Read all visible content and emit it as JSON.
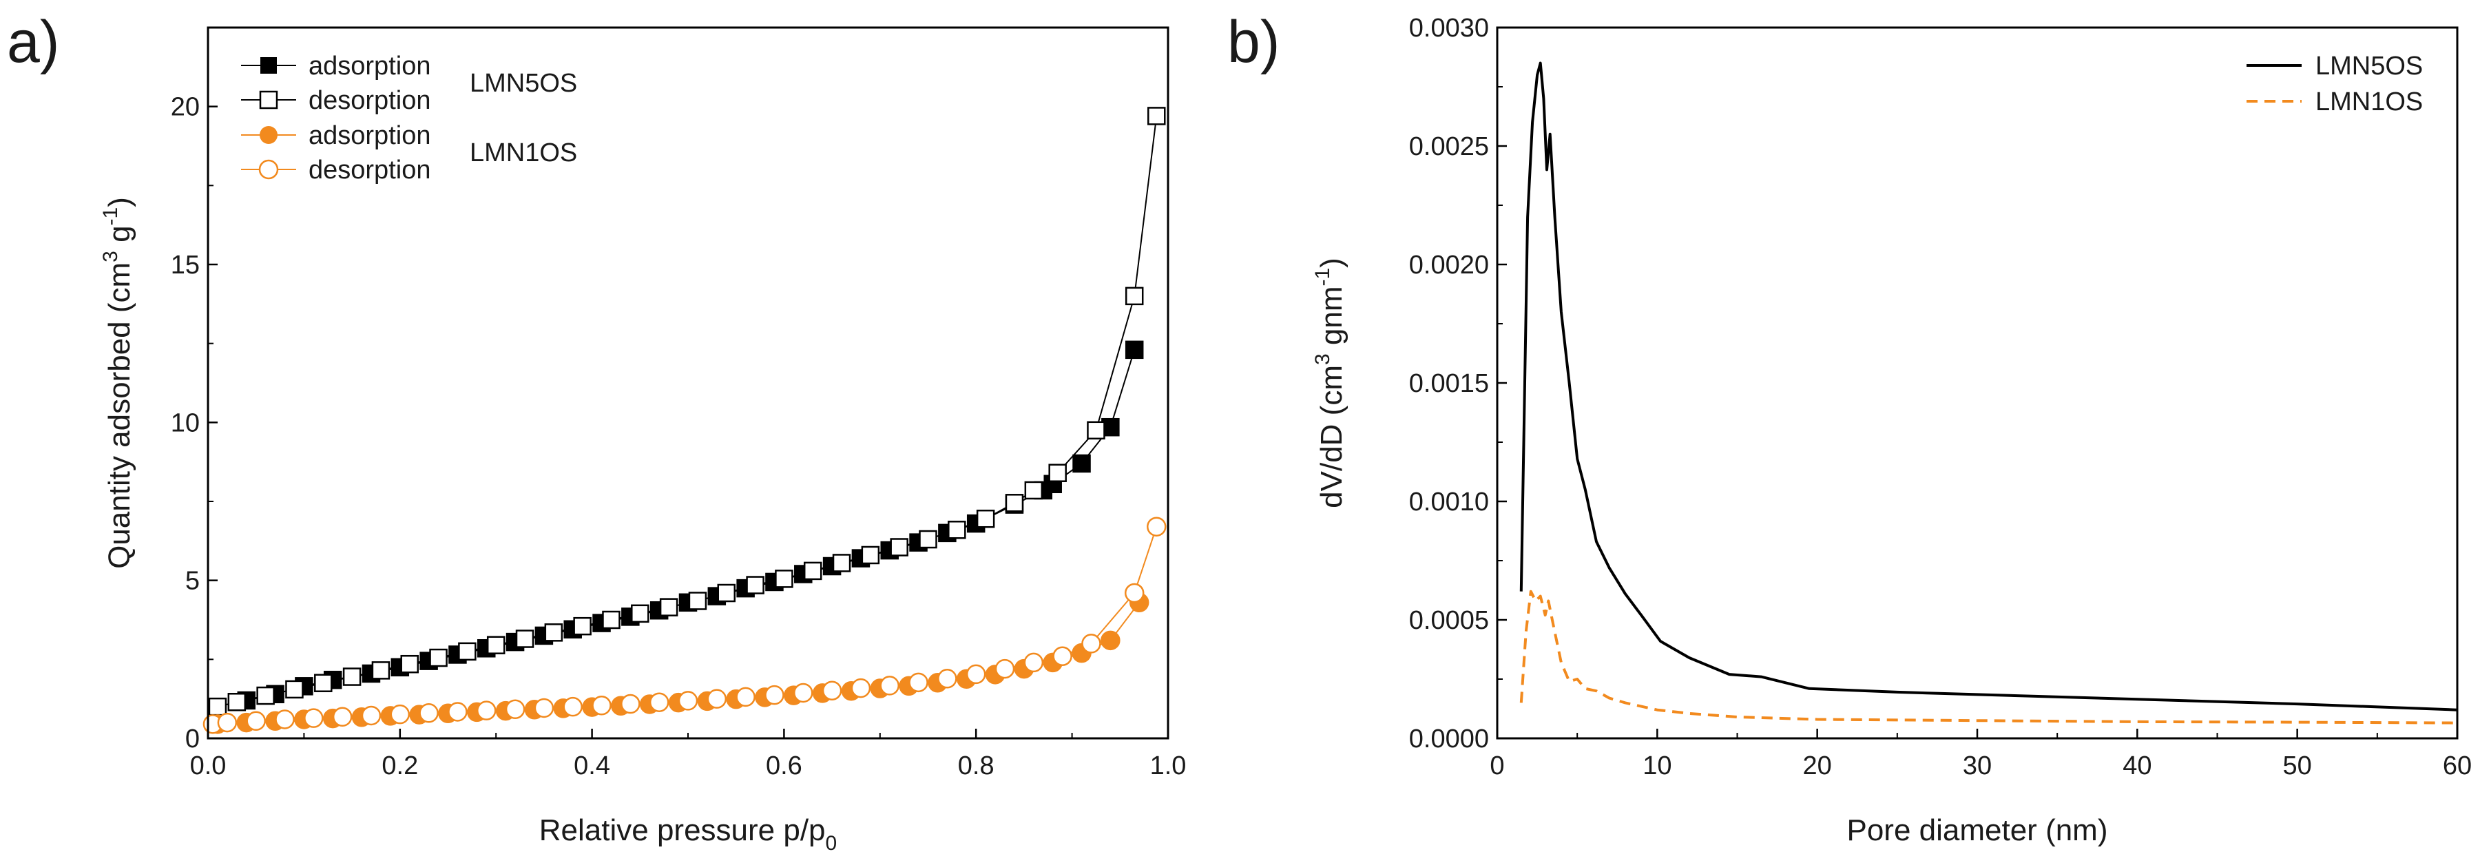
{
  "chart_data": [
    {
      "panel_label": "a)",
      "type": "scatter",
      "xlabel": "Relative pressure p/p",
      "xlabel_sub": "0",
      "ylabel": "Quantity adsorbed (cm",
      "ylabel_sup1": "3",
      "ylabel_mid": " g",
      "ylabel_sup2": "-1",
      "ylabel_end": ")",
      "xlim": [
        0.0,
        1.0
      ],
      "ylim": [
        0,
        22.5
      ],
      "xticks": [
        "0.0",
        "0.2",
        "0.4",
        "0.6",
        "0.8",
        "1.0"
      ],
      "yticks": [
        "0",
        "5",
        "10",
        "15",
        "20"
      ],
      "sample_labels": [
        "LMN5OS",
        "LMN1OS"
      ],
      "series": [
        {
          "name": "adsorption",
          "sample": "LMN5OS",
          "color": "#000000",
          "marker": "square",
          "filled": true,
          "x": [
            0.04,
            0.07,
            0.1,
            0.13,
            0.17,
            0.2,
            0.23,
            0.26,
            0.29,
            0.32,
            0.35,
            0.38,
            0.41,
            0.44,
            0.47,
            0.5,
            0.53,
            0.56,
            0.59,
            0.62,
            0.65,
            0.68,
            0.71,
            0.74,
            0.77,
            0.8,
            0.84,
            0.87,
            0.88,
            0.91,
            0.94,
            0.965
          ],
          "y": [
            1.2,
            1.4,
            1.65,
            1.85,
            2.05,
            2.25,
            2.45,
            2.65,
            2.85,
            3.05,
            3.25,
            3.45,
            3.65,
            3.85,
            4.05,
            4.3,
            4.5,
            4.75,
            4.95,
            5.2,
            5.45,
            5.7,
            5.95,
            6.2,
            6.5,
            6.8,
            7.4,
            7.85,
            8.05,
            8.7,
            9.85,
            12.3
          ]
        },
        {
          "name": "desorption",
          "sample": "LMN5OS",
          "color": "#000000",
          "marker": "square",
          "filled": false,
          "x": [
            0.01,
            0.03,
            0.06,
            0.09,
            0.12,
            0.15,
            0.18,
            0.21,
            0.24,
            0.27,
            0.3,
            0.33,
            0.36,
            0.39,
            0.42,
            0.45,
            0.48,
            0.51,
            0.54,
            0.57,
            0.6,
            0.63,
            0.66,
            0.69,
            0.72,
            0.75,
            0.78,
            0.81,
            0.84,
            0.86,
            0.885,
            0.925,
            0.965,
            0.988
          ],
          "y": [
            1.0,
            1.15,
            1.35,
            1.55,
            1.75,
            1.95,
            2.15,
            2.35,
            2.55,
            2.75,
            2.95,
            3.15,
            3.35,
            3.55,
            3.75,
            3.95,
            4.15,
            4.35,
            4.6,
            4.85,
            5.05,
            5.3,
            5.55,
            5.8,
            6.05,
            6.3,
            6.6,
            6.95,
            7.45,
            7.85,
            8.4,
            9.75,
            14.0,
            19.7
          ]
        },
        {
          "name": "adsorption",
          "sample": "LMN1OS",
          "color": "#f28a1e",
          "marker": "circle",
          "filled": true,
          "x": [
            0.01,
            0.04,
            0.07,
            0.1,
            0.13,
            0.16,
            0.19,
            0.22,
            0.25,
            0.28,
            0.31,
            0.34,
            0.37,
            0.4,
            0.43,
            0.46,
            0.49,
            0.52,
            0.55,
            0.58,
            0.61,
            0.64,
            0.67,
            0.7,
            0.73,
            0.76,
            0.79,
            0.82,
            0.85,
            0.88,
            0.91,
            0.94,
            0.97
          ],
          "y": [
            0.45,
            0.5,
            0.55,
            0.6,
            0.63,
            0.67,
            0.71,
            0.75,
            0.79,
            0.83,
            0.87,
            0.91,
            0.95,
            0.99,
            1.03,
            1.08,
            1.13,
            1.18,
            1.24,
            1.3,
            1.36,
            1.43,
            1.5,
            1.58,
            1.66,
            1.76,
            1.88,
            2.02,
            2.2,
            2.4,
            2.7,
            3.1,
            4.3
          ]
        },
        {
          "name": "desorption",
          "sample": "LMN1OS",
          "color": "#f28a1e",
          "marker": "circle",
          "filled": false,
          "x": [
            0.005,
            0.02,
            0.05,
            0.08,
            0.11,
            0.14,
            0.17,
            0.2,
            0.23,
            0.26,
            0.29,
            0.32,
            0.35,
            0.38,
            0.41,
            0.44,
            0.47,
            0.5,
            0.53,
            0.56,
            0.59,
            0.62,
            0.65,
            0.68,
            0.71,
            0.74,
            0.77,
            0.8,
            0.83,
            0.86,
            0.89,
            0.92,
            0.965,
            0.988
          ],
          "y": [
            0.45,
            0.5,
            0.55,
            0.6,
            0.64,
            0.68,
            0.72,
            0.76,
            0.8,
            0.84,
            0.88,
            0.92,
            0.96,
            1.0,
            1.04,
            1.09,
            1.14,
            1.19,
            1.25,
            1.31,
            1.37,
            1.44,
            1.51,
            1.59,
            1.67,
            1.77,
            1.89,
            2.03,
            2.2,
            2.4,
            2.6,
            3.0,
            4.6,
            6.7
          ]
        }
      ]
    },
    {
      "panel_label": "b)",
      "type": "line",
      "xlabel": "Pore diameter (nm)",
      "ylabel": "dV/dD (cm",
      "ylabel_sup1": "3",
      "ylabel_mid": " gnm",
      "ylabel_sup2": "-1",
      "ylabel_end": ")",
      "xlim": [
        0,
        60
      ],
      "ylim": [
        0.0,
        0.003
      ],
      "xticks": [
        "0",
        "10",
        "20",
        "30",
        "40",
        "50",
        "60"
      ],
      "yticks": [
        "0.0000",
        "0.0005",
        "0.0010",
        "0.0015",
        "0.0020",
        "0.0025",
        "0.0030"
      ],
      "series": [
        {
          "name": "LMN5OS",
          "color": "#000000",
          "style": "solid",
          "x": [
            1.5,
            1.9,
            2.2,
            2.5,
            2.7,
            2.9,
            3.1,
            3.3,
            3.6,
            4.0,
            4.5,
            5.0,
            5.5,
            6.2,
            7.0,
            8.0,
            9.0,
            10.2,
            12.0,
            14.5,
            16.5,
            19.5,
            25,
            30,
            40,
            50,
            60
          ],
          "y": [
            0.00062,
            0.0022,
            0.0026,
            0.0028,
            0.00285,
            0.0027,
            0.0024,
            0.00255,
            0.0022,
            0.0018,
            0.0015,
            0.00118,
            0.00105,
            0.00083,
            0.00072,
            0.00061,
            0.00052,
            0.00041,
            0.00034,
            0.00027,
            0.00026,
            0.00021,
            0.000195,
            0.000185,
            0.000165,
            0.000145,
            0.00012
          ]
        },
        {
          "name": "LMN1OS",
          "color": "#f28a1e",
          "style": "dashed",
          "x": [
            1.5,
            1.8,
            2.1,
            2.4,
            2.7,
            3.0,
            3.2,
            3.5,
            4.0,
            4.5,
            5.0,
            5.5,
            6.2,
            7.0,
            8.0,
            10.0,
            12.0,
            15.0,
            20.0,
            30.0,
            40.0,
            50.0,
            60.0
          ],
          "y": [
            0.00015,
            0.00045,
            0.00062,
            0.00058,
            0.0006,
            0.00052,
            0.00058,
            0.00048,
            0.00032,
            0.00024,
            0.00025,
            0.00021,
            0.0002,
            0.00017,
            0.00015,
            0.00012,
            0.000105,
            9e-05,
            8e-05,
            7.5e-05,
            7e-05,
            6.8e-05,
            6.5e-05
          ]
        }
      ]
    }
  ]
}
